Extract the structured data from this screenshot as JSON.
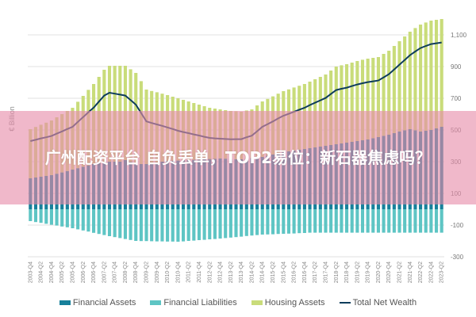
{
  "banner": {
    "title": "广州配资平台 自负丢单，TOP2易位：新石器焦虑吗？"
  },
  "chart_data": {
    "type": "bar",
    "subtype": "stacked bar with line",
    "ylabel": "€ Billion",
    "ylim": [
      -300,
      1200
    ],
    "yticks": [
      -300,
      -100,
      100,
      300,
      500,
      700,
      900,
      1100
    ],
    "ytick_labels": [
      "-300",
      "-100",
      "100",
      "300",
      "500",
      "700",
      "900",
      "1,100"
    ],
    "grid": true,
    "legend_position": "bottom",
    "x_start": "2003-Q4",
    "x_end": "2023-Q2",
    "x_labels": [
      "2003-Q4",
      "2004-Q2",
      "2004-Q4",
      "2005-Q2",
      "2005-Q4",
      "2006-Q2",
      "2006-Q4",
      "2007-Q2",
      "2007-Q4",
      "2008-Q2",
      "2008-Q4",
      "2009-Q2",
      "2009-Q4",
      "2010-Q2",
      "2010-Q4",
      "2011-Q2",
      "2011-Q4",
      "2012-Q2",
      "2012-Q4",
      "2013-Q2",
      "2013-Q4",
      "2014-Q2",
      "2014-Q4",
      "2015-Q2",
      "2015-Q4",
      "2016-Q2",
      "2016-Q4",
      "2017-Q2",
      "2017-Q4",
      "2018-Q2",
      "2018-Q4",
      "2019-Q2",
      "2019-Q4",
      "2020-Q2",
      "2020-Q4",
      "2021-Q2",
      "2021-Q4",
      "2022-Q2",
      "2022-Q4",
      "2023-Q2"
    ],
    "series": [
      {
        "name": "Financial Assets",
        "type": "bar",
        "color": "#17809b",
        "values": [
          195,
          200,
          205,
          210,
          215,
          224,
          232,
          241,
          250,
          259,
          268,
          276,
          285,
          290,
          295,
          300,
          300,
          300,
          310,
          298,
          285,
          285,
          285,
          290,
          295,
          300,
          305,
          306,
          307,
          309,
          310,
          312,
          313,
          315,
          317,
          318,
          320,
          319,
          318,
          316,
          315,
          319,
          323,
          326,
          330,
          338,
          345,
          353,
          360,
          365,
          370,
          375,
          380,
          385,
          390,
          395,
          400,
          405,
          410,
          415,
          420,
          425,
          430,
          435,
          440,
          448,
          455,
          463,
          470,
          480,
          490,
          498,
          505,
          498,
          490,
          495,
          500,
          510,
          520
        ]
      },
      {
        "name": "Financial Liabilities",
        "type": "bar",
        "color": "#5ec5c4",
        "values": [
          -75,
          -81,
          -86,
          -92,
          -98,
          -103,
          -109,
          -114,
          -120,
          -127,
          -134,
          -141,
          -149,
          -156,
          -163,
          -170,
          -176,
          -182,
          -188,
          -194,
          -200,
          -201,
          -201,
          -202,
          -203,
          -203,
          -204,
          -204,
          -205,
          -203,
          -200,
          -198,
          -195,
          -193,
          -190,
          -188,
          -185,
          -182,
          -179,
          -176,
          -173,
          -169,
          -166,
          -163,
          -160,
          -159,
          -158,
          -156,
          -155,
          -154,
          -153,
          -151,
          -150,
          -148,
          -148,
          -148,
          -148,
          -148,
          -148,
          -148,
          -148,
          -148,
          -148,
          -148,
          -148,
          -148,
          -148,
          -148,
          -148,
          -148,
          -148,
          -148,
          -148,
          -148,
          -148,
          -148,
          -148,
          -148,
          -148
        ]
      },
      {
        "name": "Housing Assets",
        "type": "bar",
        "color": "#c9dc7a",
        "values": [
          310,
          319,
          328,
          336,
          345,
          356,
          368,
          379,
          390,
          419,
          447,
          477,
          505,
          545,
          585,
          605,
          605,
          605,
          595,
          585,
          575,
          523,
          470,
          456,
          443,
          429,
          415,
          404,
          393,
          381,
          370,
          358,
          347,
          335,
          323,
          317,
          310,
          306,
          302,
          302,
          300,
          304,
          307,
          329,
          350,
          358,
          367,
          376,
          385,
          391,
          398,
          404,
          410,
          420,
          430,
          440,
          450,
          470,
          490,
          493,
          495,
          500,
          505,
          508,
          510,
          507,
          505,
          517,
          530,
          550,
          570,
          592,
          615,
          645,
          675,
          683,
          690,
          685,
          680
        ]
      },
      {
        "name": "Total Net Wealth",
        "type": "line",
        "color": "#0e3d5c",
        "values": [
          430,
          438,
          447,
          454,
          462,
          477,
          491,
          506,
          520,
          551,
          581,
          612,
          641,
          679,
          717,
          735,
          729,
          723,
          717,
          689,
          660,
          607,
          554,
          544,
          535,
          526,
          516,
          506,
          495,
          487,
          480,
          472,
          465,
          457,
          450,
          447,
          445,
          443,
          441,
          442,
          442,
          454,
          464,
          492,
          520,
          537,
          554,
          573,
          590,
          602,
          615,
          628,
          640,
          657,
          672,
          687,
          702,
          727,
          752,
          760,
          767,
          777,
          787,
          795,
          802,
          807,
          812,
          832,
          852,
          882,
          912,
          942,
          972,
          995,
          1017,
          1030,
          1042,
          1047,
          1052
        ]
      }
    ]
  }
}
